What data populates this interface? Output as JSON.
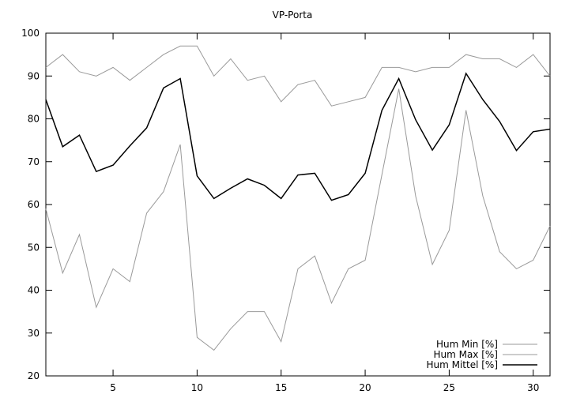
{
  "chart_data": {
    "type": "line",
    "title": "VP-Porta",
    "xlabel": "",
    "ylabel": "",
    "xlim": [
      1,
      31
    ],
    "ylim": [
      20,
      100
    ],
    "xticks": [
      5,
      10,
      15,
      20,
      25,
      30
    ],
    "yticks": [
      20,
      30,
      40,
      50,
      60,
      70,
      80,
      90,
      100
    ],
    "grid": false,
    "legend_position": "bottom-right",
    "x": [
      1,
      2,
      3,
      4,
      5,
      6,
      7,
      8,
      9,
      10,
      11,
      12,
      13,
      14,
      15,
      16,
      17,
      18,
      19,
      20,
      21,
      22,
      23,
      24,
      25,
      26,
      27,
      28,
      29,
      30,
      31
    ],
    "series": [
      {
        "name": "Hum Min [%]",
        "color": "#9a9a9a",
        "values": [
          59,
          44,
          53,
          36,
          45,
          42,
          58,
          63,
          74,
          29,
          26,
          31,
          35,
          35,
          28,
          45,
          48,
          37,
          45,
          47,
          67,
          87,
          62,
          46,
          54,
          82,
          62,
          49,
          45,
          47,
          55
        ]
      },
      {
        "name": "Hum Max [%]",
        "color": "#9a9a9a",
        "values": [
          92,
          95,
          91,
          90,
          92,
          89,
          92,
          95,
          97,
          97,
          90,
          94,
          89,
          90,
          84,
          88,
          89,
          83,
          84,
          85,
          92,
          92,
          91,
          92,
          92,
          95,
          94,
          94,
          92,
          95,
          90
        ]
      },
      {
        "name": "Hum Mittel [%]",
        "color": "#000000",
        "values": [
          84.5,
          73.5,
          76.2,
          67.7,
          69.2,
          73.7,
          77.9,
          87.2,
          89.4,
          66.7,
          61.4,
          63.8,
          66.0,
          64.5,
          61.4,
          66.9,
          67.3,
          61.0,
          62.3,
          67.3,
          82.0,
          89.4,
          79.8,
          72.7,
          78.6,
          90.6,
          84.5,
          79.4,
          72.6,
          77.0,
          77.6
        ]
      }
    ]
  }
}
